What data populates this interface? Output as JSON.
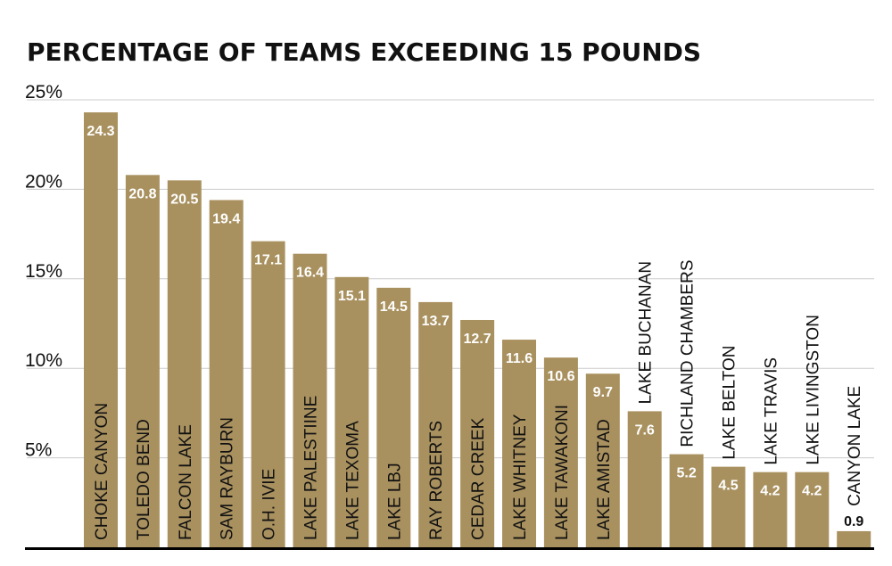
{
  "chart_data": {
    "type": "bar",
    "title": "PERCENTAGE OF TEAMS EXCEEDING 15 POUNDS",
    "xlabel": "",
    "ylabel": "",
    "ylim": [
      0,
      25
    ],
    "yticks": [
      "5%",
      "10%",
      "15%",
      "20%",
      "25%"
    ],
    "ytick_values": [
      5,
      10,
      15,
      20,
      25
    ],
    "grid": true,
    "categories": [
      "CHOKE CANYON",
      "TOLEDO BEND",
      "FALCON LAKE",
      "SAM RAYBURN",
      "O.H. IVIE",
      "LAKE PALESTIINE",
      "LAKE TEXOMA",
      "LAKE LBJ",
      "RAY ROBERTS",
      "CEDAR CREEK",
      "LAKE WHITNEY",
      "LAKE TAWAKONI",
      "LAKE AMISTAD",
      "LAKE BUCHANAN",
      "RICHLAND CHAMBERS",
      "LAKE BELTON",
      "LAKE TRAVIS",
      "LAKE LIVINGSTON",
      "CANYON LAKE"
    ],
    "values": [
      24.3,
      20.8,
      20.5,
      19.4,
      17.1,
      16.4,
      15.1,
      14.5,
      13.7,
      12.7,
      11.6,
      10.6,
      9.7,
      7.6,
      5.2,
      4.5,
      4.2,
      4.2,
      0.9
    ],
    "value_labels": [
      "24.3",
      "20.8",
      "20.5",
      "19.4",
      "17.1",
      "16.4",
      "15.1",
      "14.5",
      "13.7",
      "12.7",
      "11.6",
      "10.6",
      "9.7",
      "7.6",
      "5.2",
      "4.5",
      "4.2",
      "4.2",
      "0.9"
    ],
    "bar_color": "#a9915f",
    "grid_color": "#cccccc",
    "axis_color": "#000000"
  }
}
